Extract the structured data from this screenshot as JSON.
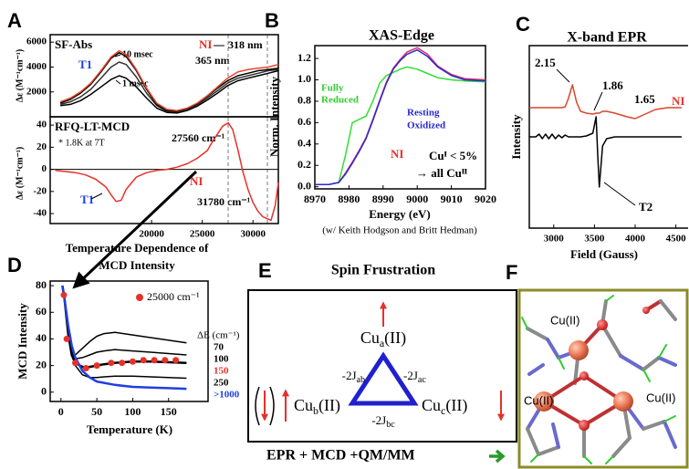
{
  "panel_labels": [
    "A",
    "B",
    "C",
    "D",
    "E",
    "F"
  ],
  "chart_data": [
    {
      "type": "line",
      "title": "SF-Abs",
      "ylabel": "Δε (M⁻¹cm⁻¹)",
      "x": [
        11000,
        12000,
        13000,
        14000,
        15000,
        16000,
        16800,
        17500,
        18500,
        19500,
        20500,
        21500,
        22500,
        23500,
        24500,
        25500,
        26500,
        27500,
        28500,
        29500,
        30500,
        31500,
        32500
      ],
      "series": [
        {
          "color": "#000000",
          "values": [
            900,
            1000,
            1300,
            1800,
            2400,
            3000,
            3300,
            3100,
            2400,
            1500,
            700,
            350,
            300,
            500,
            850,
            1350,
            1900,
            2500,
            2900,
            3100,
            3300,
            3500,
            3700
          ]
        },
        {
          "color": "#333333",
          "values": [
            1000,
            1200,
            1600,
            2200,
            3100,
            4000,
            4400,
            4200,
            3200,
            1900,
            900,
            450,
            400,
            600,
            950,
            1500,
            2100,
            2700,
            3100,
            3300,
            3500,
            3700,
            3800
          ]
        },
        {
          "color": "#000000",
          "values": [
            1100,
            1400,
            1900,
            2600,
            3600,
            4700,
            5150,
            4850,
            3700,
            2200,
            1000,
            500,
            450,
            650,
            1050,
            1650,
            2300,
            2900,
            3300,
            3500,
            3700,
            3800,
            3900
          ]
        },
        {
          "color": "#e8452c",
          "values": [
            1200,
            1500,
            2000,
            2700,
            3700,
            4800,
            5300,
            5000,
            3800,
            2300,
            1100,
            600,
            500,
            700,
            1100,
            1700,
            2400,
            3100,
            3600,
            3800,
            3900,
            4000,
            4200
          ]
        }
      ],
      "xlim": [
        10000,
        32500
      ],
      "ylim": [
        0,
        6600
      ],
      "yticks": [
        2000,
        4000,
        6000
      ],
      "annotations": [
        "NI",
        "318 nm",
        "365 nm",
        "T1",
        "10 msec",
        "1 msec"
      ]
    },
    {
      "type": "line",
      "title": "RFQ-LT-MCD",
      "subtitle": "* 1.8K at 7T",
      "ylabel": "Δε (M⁻¹cm⁻¹)",
      "x": [
        10500,
        11500,
        12500,
        13500,
        14500,
        15500,
        16000,
        16500,
        17000,
        17500,
        18500,
        19500,
        20500,
        21500,
        22500,
        23500,
        24500,
        25500,
        26000,
        26500,
        27000,
        27560,
        28000,
        28500,
        29000,
        29500,
        30000,
        30500,
        31000,
        31780,
        32200,
        32500
      ],
      "series": [
        {
          "color": "#e8302a",
          "values": [
            -1,
            -2,
            -3,
            -5,
            -9,
            -16,
            -23,
            -29,
            -28,
            -18,
            -7,
            -3,
            -1,
            0,
            2,
            5,
            10,
            17,
            25,
            32,
            39,
            42,
            36,
            18,
            -2,
            -18,
            -30,
            -38,
            -43,
            -46,
            -32,
            -12
          ]
        }
      ],
      "xlim": [
        10000,
        32500
      ],
      "ylim": [
        -49,
        47.5
      ],
      "yticks": [
        -40,
        -20,
        0,
        20,
        40
      ],
      "xticks": [
        20000,
        25000,
        30000
      ],
      "zero_line": true,
      "annotations": [
        "27560 cm⁻¹",
        "NI",
        "31780 cm⁻¹",
        "T1"
      ]
    },
    {
      "type": "line",
      "title": "XAS-Edge",
      "xlabel": "Energy (eV)",
      "ylabel": "Norm. Intensity",
      "note": "(w/ Keith Hodgson and Britt Hedman)",
      "x": [
        8970,
        8974,
        8977,
        8979,
        8981,
        8983,
        8985,
        8987,
        8989,
        8991,
        8993,
        8995,
        8997,
        9000,
        9003,
        9006,
        9010,
        9014,
        9020
      ],
      "series": [
        {
          "color": "#33dd33",
          "values": [
            0.02,
            0.02,
            0.04,
            0.3,
            0.6,
            0.63,
            0.66,
            0.8,
            0.97,
            1.04,
            1.07,
            1.1,
            1.12,
            1.1,
            1.06,
            1.02,
            1.0,
            0.99,
            0.98
          ]
        },
        {
          "color": "#e0306a",
          "values": [
            0.02,
            0.02,
            0.04,
            0.13,
            0.23,
            0.34,
            0.46,
            0.63,
            0.81,
            0.98,
            1.11,
            1.19,
            1.26,
            1.3,
            1.24,
            1.13,
            1.05,
            1.01,
            1.0
          ]
        },
        {
          "color": "#2a2ad0",
          "values": [
            0.02,
            0.02,
            0.04,
            0.12,
            0.22,
            0.33,
            0.45,
            0.62,
            0.8,
            0.97,
            1.1,
            1.18,
            1.24,
            1.28,
            1.22,
            1.12,
            1.04,
            1.0,
            0.99
          ]
        }
      ],
      "xlim": [
        8970,
        9020
      ],
      "ylim": [
        -0.02,
        1.32
      ],
      "xticks": [
        8970,
        8980,
        8990,
        9000,
        9010,
        9020
      ],
      "yticks": [
        {
          "value": 0,
          "label": "0.0"
        },
        0.2,
        0.4,
        0.6,
        0.8,
        {
          "value": 1,
          "label": "1.0"
        },
        1.2
      ],
      "annotations": [
        "Fully",
        "Reduced",
        "Resting",
        "Oxidized",
        "NI",
        "Cuᴵ < 5%",
        "→ all Cuᴵᴵ"
      ]
    },
    {
      "type": "line",
      "title": "X-band EPR",
      "xlabel": "Field (Gauss)",
      "ylabel": "Intensity",
      "x": [
        2700,
        2780,
        2820,
        2860,
        2900,
        2940,
        2980,
        3020,
        3060,
        3100,
        3140,
        3180,
        3230,
        3280,
        3330,
        3400,
        3480,
        3520,
        3540,
        3560,
        3600,
        3650,
        3750,
        3900,
        4000,
        4100,
        4250,
        4400,
        4570
      ],
      "series": [
        {
          "color": "#d9452a",
          "values": [
            66,
            66,
            66,
            66,
            66,
            66,
            66,
            66,
            66,
            66,
            66.5,
            71,
            78.5,
            69,
            64,
            63,
            62.5,
            63,
            63,
            63,
            64,
            64,
            63,
            61,
            60,
            62,
            65,
            66,
            66
          ]
        },
        {
          "color": "#000000",
          "values": [
            50,
            50,
            51.5,
            49,
            51.5,
            49,
            51.5,
            49,
            51,
            49.5,
            51,
            50,
            50,
            50,
            50,
            50.5,
            52,
            61,
            40,
            22.5,
            45,
            49,
            50,
            50,
            50,
            50,
            50,
            50,
            50
          ]
        }
      ],
      "xlim": [
        2700,
        4650
      ],
      "ylim": [
        0,
        100
      ],
      "xticks": [
        3000,
        3500,
        4000,
        4500
      ],
      "annotations": [
        "2.15",
        "1.86",
        "1.65",
        "NI",
        "T2"
      ]
    },
    {
      "type": "line",
      "title": [
        "Temperature Dependence of",
        "MCD Intensity"
      ],
      "xlabel": "Temperature (K)",
      "ylabel": "MCD Intensity",
      "legend_title": "ΔE (cm⁻¹)",
      "x": [
        2,
        5,
        10,
        15,
        20,
        30,
        40,
        50,
        60,
        75,
        100,
        125,
        150,
        175
      ],
      "series": [
        {
          "name": "70",
          "color": "#000000",
          "values": [
            80,
            70,
            42,
            30,
            28,
            33,
            38,
            42,
            44,
            45,
            43,
            41,
            39,
            37
          ]
        },
        {
          "name": "100",
          "color": "#000000",
          "values": [
            80,
            70,
            43,
            29,
            25,
            26,
            28,
            30,
            31,
            32,
            31,
            30,
            29,
            28
          ]
        },
        {
          "name": "150",
          "color": "#000000",
          "label_color": "#e8302a",
          "width": 2.5,
          "values": [
            80,
            70,
            44,
            28,
            22,
            19,
            19,
            20,
            21,
            22,
            23,
            23,
            22.5,
            22
          ]
        },
        {
          "name": "250",
          "color": "#000000",
          "values": [
            80,
            70,
            45,
            28,
            20,
            13,
            11,
            11,
            11.5,
            12,
            12,
            11.5,
            11,
            10.5
          ]
        },
        {
          "name": ">1000",
          "color": "#1f3fe0",
          "width": 2.5,
          "values": [
            80,
            70,
            50,
            35,
            26,
            16,
            11,
            8,
            7,
            5.5,
            4,
            3.5,
            3,
            2.5
          ]
        },
        {
          "name": "25000 cm⁻¹",
          "type": "scatter",
          "color": "#e8302a",
          "x": [
            4,
            8,
            20,
            35,
            50,
            70,
            85,
            100,
            115,
            130,
            145,
            160
          ],
          "values": [
            73,
            40,
            22,
            18,
            20,
            22,
            22,
            23,
            24,
            24,
            24,
            24
          ]
        }
      ],
      "xlim": [
        -15,
        205
      ],
      "ylim": [
        -7,
        83.5
      ],
      "xticks": [
        0,
        50,
        100,
        150
      ],
      "yticks": [
        0,
        20,
        40,
        60,
        80
      ]
    }
  ],
  "spin_frustration": {
    "title": "Spin Frustration",
    "sites": [
      {
        "name": "Cu",
        "sub": "a",
        "suffix": "(II)"
      },
      {
        "name": "Cu",
        "sub": "b",
        "suffix": "(II)"
      },
      {
        "name": "Cu",
        "sub": "c",
        "suffix": "(II)"
      }
    ],
    "couplings": [
      {
        "name": "-2J",
        "sub": "ab"
      },
      {
        "name": "-2J",
        "sub": "ac"
      },
      {
        "name": "-2J",
        "sub": "bc"
      }
    ],
    "footer": "EPR + MCD +QM/MM"
  },
  "structure": {
    "labels": [
      "Cu(II)",
      "Cu(II)",
      "Cu(II)"
    ]
  }
}
